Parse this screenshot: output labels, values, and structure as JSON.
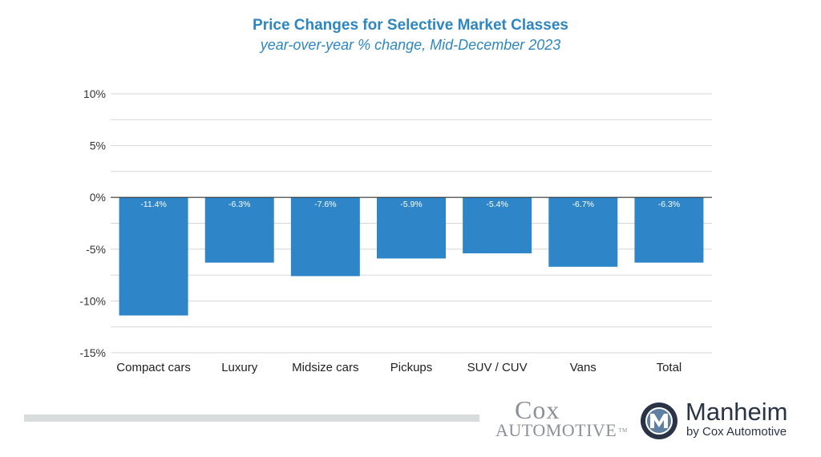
{
  "chart_data": {
    "type": "bar",
    "title": "Price Changes for Selective Market Classes",
    "subtitle": "year-over-year % change, Mid-December 2023",
    "categories": [
      "Compact cars",
      "Luxury",
      "Midsize cars",
      "Pickups",
      "SUV / CUV",
      "Vans",
      "Total"
    ],
    "values": [
      -11.4,
      -6.3,
      -7.6,
      -5.9,
      -5.4,
      -6.7,
      -6.3
    ],
    "data_labels": [
      "-11.4%",
      "-6.3%",
      "-7.6%",
      "-5.9%",
      "-5.4%",
      "-6.7%",
      "-6.3%"
    ],
    "ylim": [
      -15,
      10
    ],
    "y_ticks": [
      10,
      5,
      0,
      -5,
      -10,
      -15
    ],
    "y_tick_labels": [
      "10%",
      "5%",
      "0%",
      "-5%",
      "-10%",
      "-15%"
    ],
    "xlabel": "",
    "ylabel": "",
    "grid": true,
    "legend": "none",
    "colors": {
      "bar": "#2e86c8",
      "title": "#2e86c1",
      "grid": "#d6d6d6",
      "zero_line": "#333333",
      "data_label": "#ffffff"
    }
  },
  "branding": {
    "cox_line1": "Cox",
    "cox_line2": "Automotive",
    "cox_tm": "TM",
    "manheim_name": "Manheim",
    "manheim_sub": "by Cox Automotive",
    "manheim_mark_icon": "manheim-m-icon",
    "colors": {
      "manheim_navy": "#2a3446",
      "cox_gray": "#8c9097"
    }
  }
}
